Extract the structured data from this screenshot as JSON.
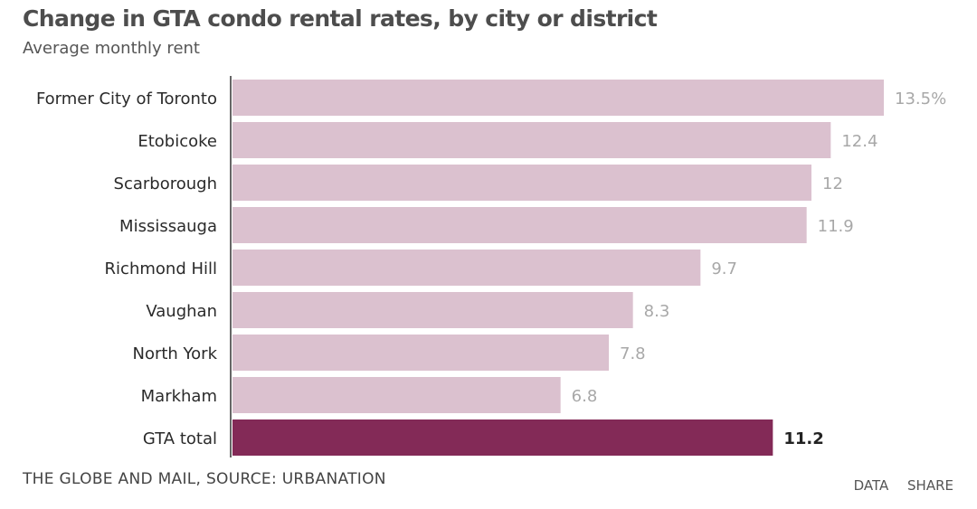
{
  "header": {
    "title": "Change in GTA condo rental rates, by city or district",
    "subtitle": "Average monthly rent"
  },
  "footer": {
    "source": "THE GLOBE AND MAIL, SOURCE: URBANATION",
    "data_link": "DATA",
    "share_link": "SHARE"
  },
  "colors": {
    "bar": "#dbc1cf",
    "highlight_bar": "#832a57",
    "value_label": "#a8a8a8",
    "highlight_value_label": "#222222",
    "axis": "#333333"
  },
  "chart_data": {
    "type": "bar",
    "orientation": "horizontal",
    "title": "Change in GTA condo rental rates, by city or district",
    "subtitle": "Average monthly rent",
    "xlabel": "",
    "ylabel": "",
    "xlim": [
      0,
      13.5
    ],
    "grid": false,
    "categories": [
      "Former City of Toronto",
      "Etobicoke",
      "Scarborough",
      "Mississauga",
      "Richmond Hill",
      "Vaughan",
      "North York",
      "Markham",
      "GTA total"
    ],
    "values": [
      13.5,
      12.4,
      12,
      11.9,
      9.7,
      8.3,
      7.8,
      6.8,
      11.2
    ],
    "value_labels": [
      "13.5%",
      "12.4",
      "12",
      "11.9",
      "9.7",
      "8.3",
      "7.8",
      "6.8",
      "11.2"
    ],
    "highlight": "GTA total"
  }
}
